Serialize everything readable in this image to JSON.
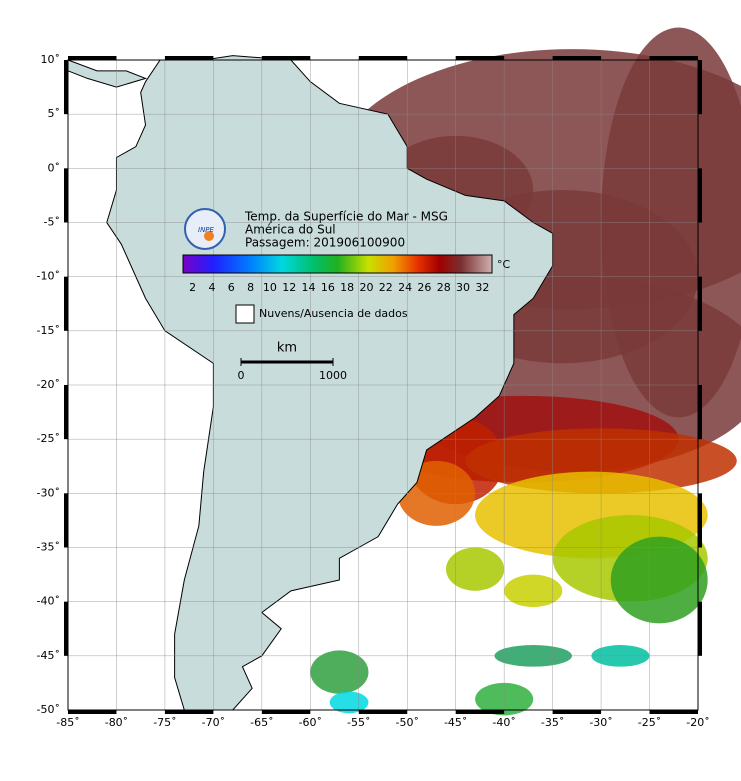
{
  "map": {
    "title_lines": [
      "Temp. da Superfície do Mar - MSG",
      "América do Sul",
      "Passagem: 201906100900"
    ],
    "logo_text": "INPE",
    "colorbar": {
      "ticks": [
        "2",
        "4",
        "6",
        "8",
        "10",
        "12",
        "14",
        "16",
        "18",
        "20",
        "22",
        "24",
        "26",
        "28",
        "30",
        "32"
      ],
      "unit": "°C"
    },
    "legend": "Nuvens/Ausencia de dados",
    "scale": {
      "unit": "km",
      "start": "0",
      "end": "1000"
    },
    "lat_labels": [
      "10˚",
      "5˚",
      "0˚",
      "-5˚",
      "-10˚",
      "-15˚",
      "-20˚",
      "-25˚",
      "-30˚",
      "-35˚",
      "-40˚",
      "-45˚",
      "-50˚"
    ],
    "lon_labels": [
      "-85˚",
      "-80˚",
      "-75˚",
      "-70˚",
      "-65˚",
      "-60˚",
      "-55˚",
      "-50˚",
      "-45˚",
      "-40˚",
      "-35˚",
      "-30˚",
      "-25˚",
      "-20˚"
    ]
  }
}
